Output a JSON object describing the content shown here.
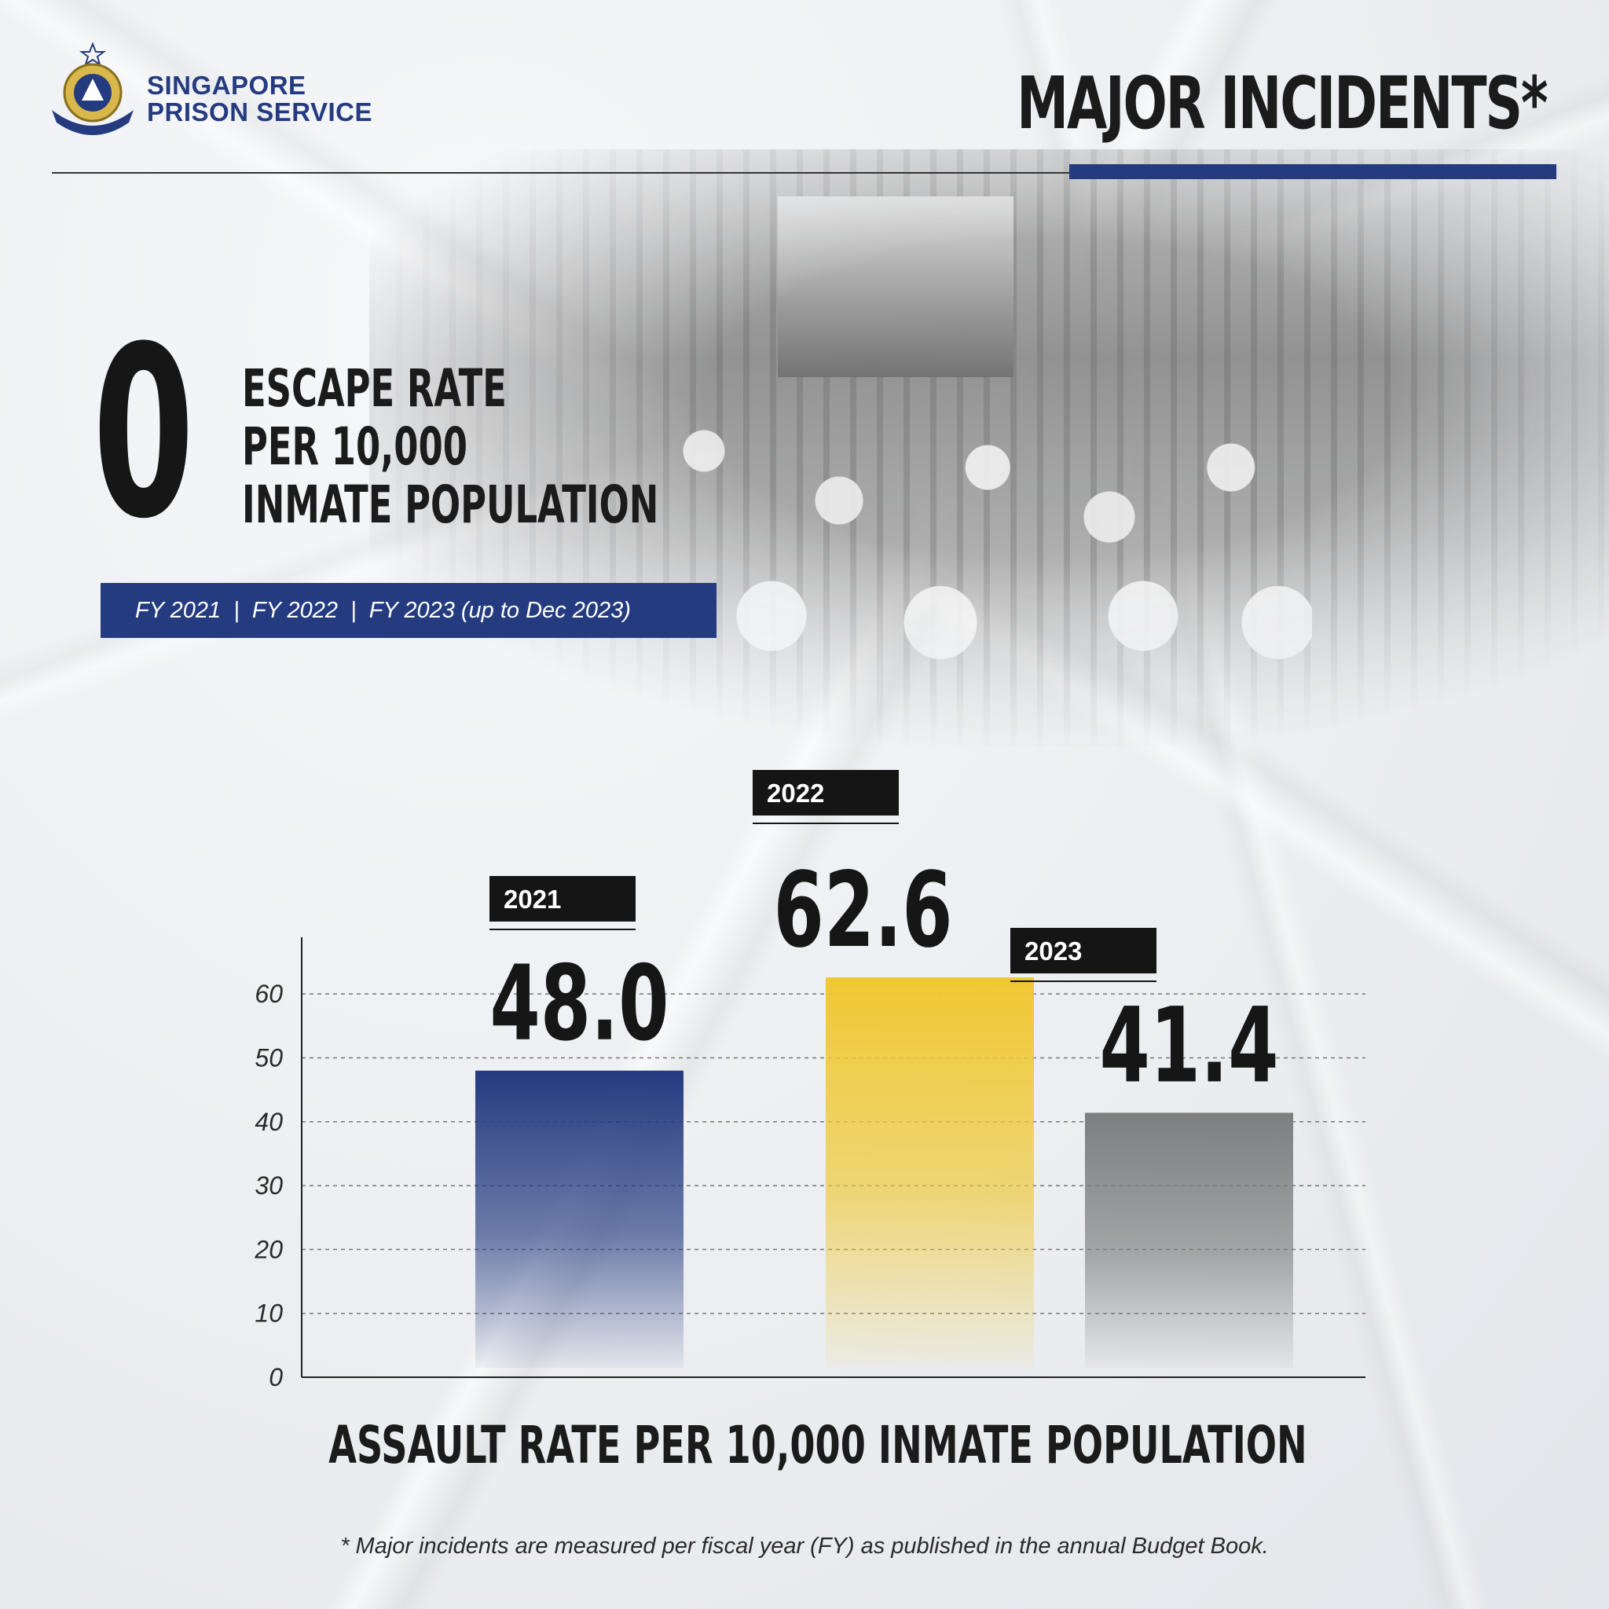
{
  "header": {
    "org_line1": "SINGAPORE",
    "org_line2": "PRISON SERVICE",
    "title": "MAJOR INCIDENTS*"
  },
  "escape": {
    "value": "0",
    "label_line1": "ESCAPE RATE",
    "label_line2": "PER 10,000",
    "label_line3": "INMATE POPULATION",
    "period": "FY 2021  |  FY 2022  |  FY 2023 (up to Dec 2023)"
  },
  "colors": {
    "navy": "#253b80",
    "yellow": "#f0c832",
    "gray": "#7d7e80",
    "text": "#1b1b1b"
  },
  "chart_data": {
    "type": "bar",
    "categories": [
      "2021",
      "2022",
      "2023"
    ],
    "values": [
      48.0,
      62.6,
      41.4
    ],
    "value_labels": [
      "48.0",
      "62.6",
      "41.4"
    ],
    "bar_colors": [
      "#253b80",
      "#f0c832",
      "#7d7e80"
    ],
    "yticks": [
      0,
      10,
      20,
      30,
      40,
      50,
      60
    ],
    "ylim": [
      0,
      69
    ],
    "grid": true,
    "xlabel": "ASSAULT RATE PER 10,000 INMATE POPULATION"
  },
  "footnote": "* Major incidents are measured per fiscal year (FY) as published in the annual Budget Book."
}
